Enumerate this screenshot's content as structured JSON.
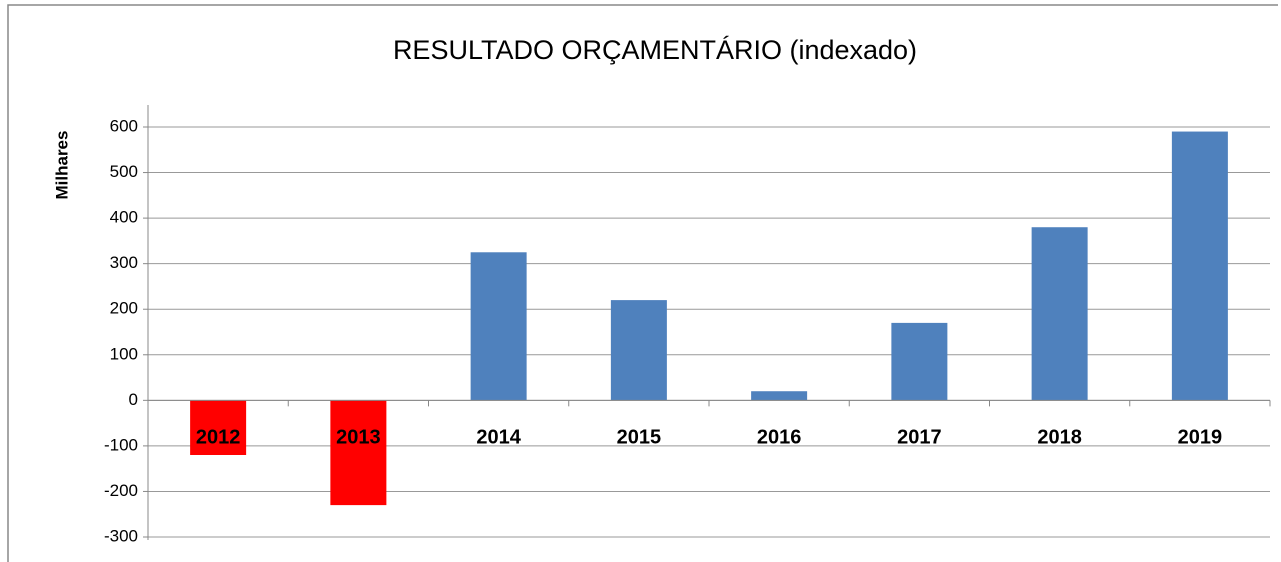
{
  "chart_data": {
    "type": "bar",
    "title": "RESULTADO ORÇAMENTÁRIO (indexado)",
    "y_label": "Milhares",
    "categories": [
      "2012",
      "2013",
      "2014",
      "2015",
      "2016",
      "2017",
      "2018",
      "2019"
    ],
    "values": [
      -120,
      -230,
      325,
      220,
      20,
      170,
      380,
      590
    ],
    "colors": [
      "#ff0000",
      "#ff0000",
      "#4f81bd",
      "#4f81bd",
      "#4f81bd",
      "#4f81bd",
      "#4f81bd",
      "#4f81bd"
    ],
    "ylim": [
      -300,
      600
    ],
    "yticks": [
      -300,
      -200,
      -100,
      0,
      100,
      200,
      300,
      400,
      500,
      600
    ],
    "grid": true
  }
}
